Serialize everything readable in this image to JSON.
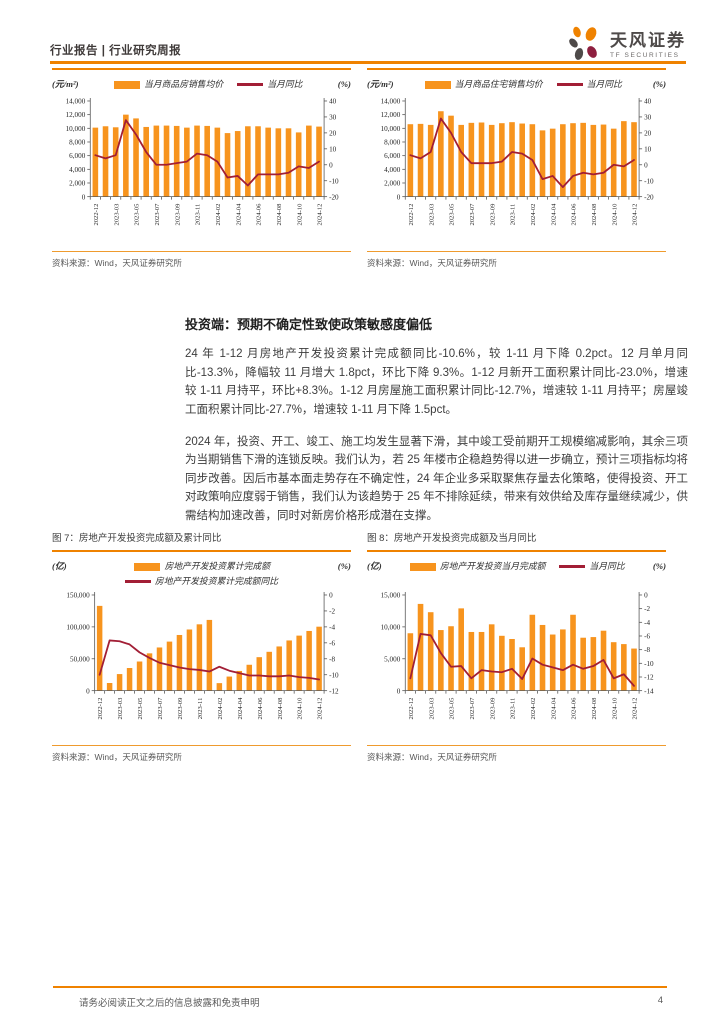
{
  "header": {
    "title": "行业报告 | 行业研究周报",
    "logo_cn": "天风证券",
    "logo_en": "TF SECURITIES"
  },
  "colors": {
    "accent_orange": "#ef8200",
    "bar_orange": "#f7941e",
    "line_maroon": "#a21e35",
    "logo_gray": "#4e4a49",
    "logo_maroon": "#8e1f3f",
    "text_gray": "#3d3d3d"
  },
  "section": {
    "heading": "投资端：预期不确定性致使政策敏感度偏低",
    "para1": "24 年 1-12 月房地产开发投资累计完成额同比-10.6%，较 1-11 月下降 0.2pct。12 月单月同比-13.3%，降幅较 11 月增大 1.8pct，环比下降 9.3%。1-12 月新开工面积累计同比-23.0%，增速较 1-11 月持平，环比+8.3%。1-12 月房屋施工面积累计同比-12.7%，增速较 1-11 月持平；房屋竣工面积累计同比-27.7%，增速较 1-11 月下降 1.5pct。",
    "para2": "2024 年，投资、开工、竣工、施工均发生显著下滑，其中竣工受前期开工规模缩减影响，其余三项为当期销售下滑的连锁反映。我们认为，若 25 年楼市企稳趋势得以进一步确立，预计三项指标均将同步改善。因后市基本面走势存在不确定性，24 年企业多采取聚焦存量去化策略，使得投资、开工对政策响应度弱于销售，我们认为该趋势于 25 年不排除延续，带来有效供给及库存量继续减少，供需结构加速改善，同时对新房价格形成潜在支撑。"
  },
  "source_note": "资料来源：Wind，天风证券研究所",
  "footer": {
    "disclaimer": "请务必阅读正文之后的信息披露和免责申明",
    "page": "4"
  },
  "chart_data": [
    {
      "id": "monthly-avg-price-commodity-housing",
      "type": "bar+line",
      "title": "",
      "unit_left": "(元/m²)",
      "unit_right": "(%)",
      "legend_rows": [
        [
          {
            "swatch": "bar",
            "label": "当月商品房销售均价"
          },
          {
            "swatch": "line",
            "label": "当月同比"
          }
        ]
      ],
      "x": [
        "2022-12",
        "2023-02",
        "2023-03",
        "2023-04",
        "2023-05",
        "2023-06",
        "2023-07",
        "2023-08",
        "2023-09",
        "2023-10",
        "2023-11",
        "2023-12",
        "2024-02",
        "2024-03",
        "2024-04",
        "2024-05",
        "2024-06",
        "2024-07",
        "2024-08",
        "2024-09",
        "2024-10",
        "2024-11",
        "2024-12"
      ],
      "x_visible_tick_labels": [
        "2022-12",
        "2023-03",
        "2023-05",
        "2023-07",
        "2023-09",
        "2023-11",
        "2024-02",
        "2024-04",
        "2024-06",
        "2024-08",
        "2024-10",
        "2024-12"
      ],
      "bars": [
        10100,
        10300,
        10150,
        12000,
        11450,
        10200,
        10400,
        10400,
        10350,
        10100,
        10400,
        10350,
        10100,
        9300,
        9600,
        10300,
        10300,
        10100,
        10000,
        10000,
        9400,
        10400,
        10250
      ],
      "line": [
        6,
        4,
        6,
        28,
        19,
        8,
        0,
        0,
        1,
        2,
        7,
        6,
        2,
        -8,
        -7,
        -13,
        -6,
        -6,
        -6,
        -5,
        -1,
        -2,
        2
      ],
      "left_axis": {
        "min": 0,
        "max": 14000,
        "step": 2000
      },
      "right_axis": {
        "min": -20,
        "max": 40,
        "step": 10
      }
    },
    {
      "id": "monthly-avg-price-residential",
      "type": "bar+line",
      "title": "",
      "unit_left": "(元/m²)",
      "unit_right": "(%)",
      "legend_rows": [
        [
          {
            "swatch": "bar",
            "label": "当月商品住宅销售均价"
          },
          {
            "swatch": "line",
            "label": "当月同比"
          }
        ]
      ],
      "x": [
        "2022-12",
        "2023-02",
        "2023-03",
        "2023-04",
        "2023-05",
        "2023-06",
        "2023-07",
        "2023-08",
        "2023-09",
        "2023-10",
        "2023-11",
        "2023-12",
        "2024-02",
        "2024-03",
        "2024-04",
        "2024-05",
        "2024-06",
        "2024-07",
        "2024-08",
        "2024-09",
        "2024-10",
        "2024-11",
        "2024-12"
      ],
      "x_visible_tick_labels": [
        "2022-12",
        "2023-03",
        "2023-05",
        "2023-07",
        "2023-09",
        "2023-11",
        "2024-02",
        "2024-04",
        "2024-06",
        "2024-08",
        "2024-10",
        "2024-12"
      ],
      "bars": [
        10600,
        10650,
        10500,
        12500,
        11850,
        10500,
        10800,
        10850,
        10500,
        10750,
        10900,
        10700,
        10600,
        9700,
        9950,
        10600,
        10750,
        10800,
        10500,
        10550,
        9950,
        11050,
        10900
      ],
      "line": [
        6,
        4,
        8,
        29,
        20,
        8,
        1,
        1,
        1,
        2,
        8,
        7,
        3,
        -9,
        -7,
        -14,
        -7,
        -5,
        -6,
        -5,
        0,
        -1,
        3
      ],
      "left_axis": {
        "min": 0,
        "max": 14000,
        "step": 2000
      },
      "right_axis": {
        "min": -20,
        "max": 40,
        "step": 10
      }
    },
    {
      "id": "dev-investment-cumulative",
      "type": "bar+line",
      "title": "图 7：房地产开发投资完成额及累计同比",
      "unit_left": "(亿)",
      "unit_right": "(%)",
      "legend_rows": [
        [
          {
            "swatch": "bar",
            "label": "房地产开发投资累计完成额"
          }
        ],
        [
          {
            "swatch": "line",
            "label": "房地产开发投资累计完成额同比"
          }
        ]
      ],
      "x": [
        "2022-12",
        "2023-02",
        "2023-03",
        "2023-04",
        "2023-05",
        "2023-06",
        "2023-07",
        "2023-08",
        "2023-09",
        "2023-10",
        "2023-11",
        "2023-12",
        "2024-02",
        "2024-03",
        "2024-04",
        "2024-05",
        "2024-06",
        "2024-07",
        "2024-08",
        "2024-09",
        "2024-10",
        "2024-11",
        "2024-12"
      ],
      "x_visible_tick_labels": [
        "2022-12",
        "2023-03",
        "2023-05",
        "2023-07",
        "2023-09",
        "2023-11",
        "2024-02",
        "2024-04",
        "2024-06",
        "2024-08",
        "2024-10",
        "2024-12"
      ],
      "bars": [
        132900,
        12000,
        26000,
        35500,
        45700,
        58500,
        67700,
        76900,
        87300,
        95900,
        104000,
        110900,
        11800,
        22100,
        30900,
        40600,
        52500,
        60900,
        69300,
        78700,
        86300,
        93600,
        100300
      ],
      "line": [
        -10.0,
        -5.7,
        -5.8,
        -6.2,
        -7.2,
        -7.9,
        -8.5,
        -8.8,
        -9.1,
        -9.3,
        -9.4,
        -9.6,
        -9.0,
        -9.5,
        -9.8,
        -10.1,
        -10.1,
        -10.2,
        -10.2,
        -10.1,
        -10.3,
        -10.4,
        -10.6
      ],
      "left_axis": {
        "min": 0,
        "max": 150000,
        "step": 50000
      },
      "right_axis": {
        "min": -12,
        "max": 0,
        "step": 2
      }
    },
    {
      "id": "dev-investment-monthly",
      "type": "bar+line",
      "title": "图 8：房地产开发投资完成额及当月同比",
      "unit_left": "(亿)",
      "unit_right": "(%)",
      "legend_rows": [
        [
          {
            "swatch": "bar",
            "label": "房地产开发投资当月完成额"
          },
          {
            "swatch": "line",
            "label": "当月同比"
          }
        ]
      ],
      "x": [
        "2022-12",
        "2023-02",
        "2023-03",
        "2023-04",
        "2023-05",
        "2023-06",
        "2023-07",
        "2023-08",
        "2023-09",
        "2023-10",
        "2023-11",
        "2023-12",
        "2024-02",
        "2024-03",
        "2024-04",
        "2024-05",
        "2024-06",
        "2024-07",
        "2024-08",
        "2024-09",
        "2024-10",
        "2024-11",
        "2024-12"
      ],
      "x_visible_tick_labels": [
        "2022-12",
        "2023-03",
        "2023-05",
        "2023-07",
        "2023-09",
        "2023-11",
        "2024-02",
        "2024-04",
        "2024-06",
        "2024-08",
        "2024-10",
        "2024-12"
      ],
      "bars": [
        9000,
        13600,
        12300,
        9500,
        10100,
        12900,
        9200,
        9200,
        10400,
        8600,
        8100,
        6800,
        11900,
        10300,
        8800,
        9600,
        11900,
        8300,
        8400,
        9400,
        7600,
        7300,
        6600
      ],
      "line": [
        -12.2,
        -5.7,
        -5.9,
        -8.5,
        -10.5,
        -10.4,
        -12.2,
        -11.0,
        -11.2,
        -11.3,
        -10.8,
        -12.3,
        -9.3,
        -10.2,
        -10.6,
        -11.0,
        -10.2,
        -10.8,
        -10.4,
        -9.5,
        -12.2,
        -11.6,
        -13.3
      ],
      "left_axis": {
        "min": 0,
        "max": 15000,
        "step": 5000
      },
      "right_axis": {
        "min": -14,
        "max": 0,
        "step": 2
      }
    }
  ]
}
